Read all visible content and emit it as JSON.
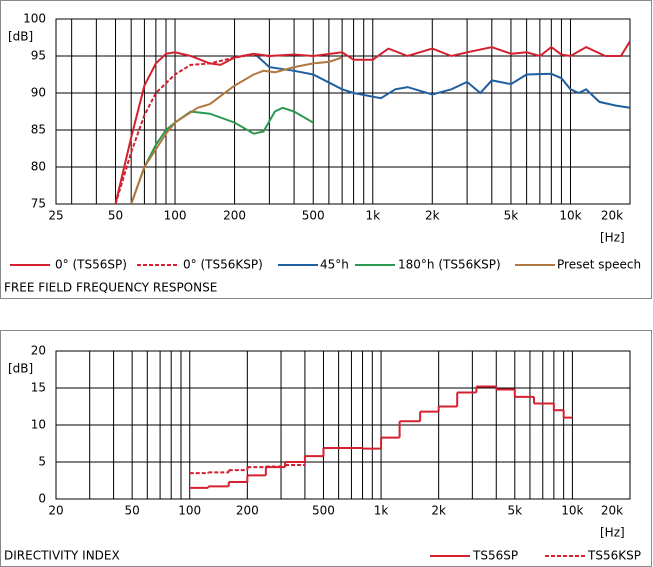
{
  "chart_data": [
    {
      "type": "line",
      "title": "FREE FIELD FREQUENCY RESPONSE",
      "y_label": "[dB]",
      "x_label": "[Hz]",
      "xscale": "log",
      "xlim": [
        25,
        20000
      ],
      "ylim": [
        75,
        100
      ],
      "xticks": [
        25,
        50,
        100,
        200,
        500,
        {
          "value": 1000,
          "label": "1k"
        },
        {
          "value": 2000,
          "label": "2k"
        },
        {
          "value": 5000,
          "label": "5k"
        },
        {
          "value": 10000,
          "label": "10k"
        },
        {
          "value": 20000,
          "label": "20k"
        }
      ],
      "yticks": [
        75,
        80,
        85,
        90,
        95,
        100
      ],
      "xgrid": [
        30,
        40,
        50,
        60,
        70,
        80,
        90,
        100,
        200,
        300,
        400,
        500,
        600,
        700,
        800,
        900,
        1000,
        2000,
        3000,
        4000,
        5000,
        6000,
        7000,
        8000,
        9000,
        10000,
        20000
      ],
      "grid": true,
      "series": [
        {
          "name": "0° (TS56SP)",
          "color": "#d4202f",
          "linestyle": "solid",
          "x": [
            50,
            60,
            70,
            80,
            90,
            100,
            120,
            150,
            170,
            200,
            250,
            300,
            400,
            500,
            700,
            800,
            1000,
            1200,
            1500,
            2000,
            2500,
            3000,
            4000,
            5000,
            6000,
            7000,
            8000,
            9000,
            10000,
            12000,
            15000,
            18000,
            20000
          ],
          "values": [
            75,
            84,
            91,
            94,
            95.3,
            95.5,
            95,
            94,
            93.8,
            94.8,
            95.3,
            95,
            95.2,
            95,
            95.5,
            94.5,
            94.5,
            96,
            95,
            96,
            95,
            95.5,
            96.2,
            95.3,
            95.5,
            95,
            96.2,
            95.2,
            95,
            96.2,
            95,
            95,
            97
          ]
        },
        {
          "name": "0° (TS56KSP)",
          "color": "#d4202f",
          "linestyle": "dashed",
          "x": [
            50,
            60,
            70,
            80,
            100,
            120,
            150,
            200,
            250,
            300
          ],
          "values": [
            75,
            82,
            87,
            90,
            92.5,
            93.8,
            94,
            94.8,
            95.2,
            95
          ]
        },
        {
          "name": "45°h",
          "color": "#1f5fa0",
          "linestyle": "solid",
          "x": [
            260,
            300,
            400,
            500,
            700,
            800,
            1000,
            1100,
            1300,
            1500,
            2000,
            2500,
            3000,
            3500,
            4000,
            5000,
            6000,
            8000,
            9000,
            10000,
            11000,
            12000,
            14000,
            17000,
            20000
          ],
          "values": [
            95,
            93.5,
            93,
            92.5,
            90.5,
            90,
            89.5,
            89.3,
            90.5,
            90.8,
            89.8,
            90.5,
            91.5,
            90,
            91.7,
            91.2,
            92.5,
            92.6,
            92,
            90.5,
            90,
            90.5,
            88.8,
            88.3,
            88
          ]
        },
        {
          "name": "180°h (TS56KSP)",
          "color": "#2a9a50",
          "linestyle": "solid",
          "x": [
            60,
            70,
            80,
            90,
            100,
            120,
            150,
            200,
            250,
            280,
            320,
            350,
            400,
            500
          ],
          "values": [
            75,
            80,
            83,
            85,
            86,
            87.5,
            87.2,
            86,
            84.5,
            84.8,
            87.5,
            88,
            87.5,
            86
          ]
        },
        {
          "name": "Preset speech",
          "color": "#b07840",
          "linestyle": "solid",
          "x": [
            60,
            70,
            90,
            100,
            130,
            150,
            200,
            250,
            280,
            320,
            400,
            500,
            600,
            700
          ],
          "values": [
            75,
            80,
            84.5,
            86,
            88,
            88.5,
            91,
            92.5,
            93,
            92.8,
            93.5,
            94,
            94.2,
            94.8
          ]
        }
      ]
    },
    {
      "type": "step",
      "title": "DIRECTIVITY INDEX",
      "y_label": "[dB]",
      "x_label": "[Hz]",
      "xscale": "log",
      "xlim": [
        20,
        20000
      ],
      "ylim": [
        0,
        20
      ],
      "xticks": [
        20,
        50,
        100,
        200,
        500,
        {
          "value": 1000,
          "label": "1k"
        },
        {
          "value": 2000,
          "label": "2k"
        },
        {
          "value": 5000,
          "label": "5k"
        },
        {
          "value": 10000,
          "label": "10k"
        },
        {
          "value": 20000,
          "label": "20k"
        }
      ],
      "yticks": [
        0,
        5,
        10,
        15,
        20
      ],
      "xgrid": [
        20,
        30,
        40,
        50,
        60,
        70,
        80,
        90,
        100,
        200,
        300,
        400,
        500,
        600,
        700,
        800,
        900,
        1000,
        2000,
        3000,
        4000,
        5000,
        6000,
        7000,
        8000,
        9000,
        10000,
        20000
      ],
      "grid": true,
      "series": [
        {
          "name": "TS56SP",
          "color": "#d4202f",
          "linestyle": "solid",
          "bins": [
            100,
            125,
            160,
            200,
            250,
            315,
            400,
            500,
            630,
            800,
            1000,
            1250,
            1600,
            2000,
            2500,
            3150,
            4000,
            5000,
            6300,
            8000,
            9000,
            10000
          ],
          "values": [
            1.5,
            1.7,
            2.3,
            3.2,
            4.3,
            5.0,
            5.8,
            6.9,
            6.9,
            6.8,
            8.3,
            10.5,
            11.8,
            12.5,
            14.4,
            15.2,
            14.8,
            13.8,
            12.9,
            12.0,
            11.0
          ]
        },
        {
          "name": "TS56KSP",
          "color": "#d4202f",
          "linestyle": "dashed",
          "bins": [
            100,
            125,
            160,
            200,
            250,
            315,
            400
          ],
          "values": [
            3.5,
            3.6,
            3.9,
            4.3,
            4.4,
            4.6
          ]
        }
      ]
    }
  ]
}
